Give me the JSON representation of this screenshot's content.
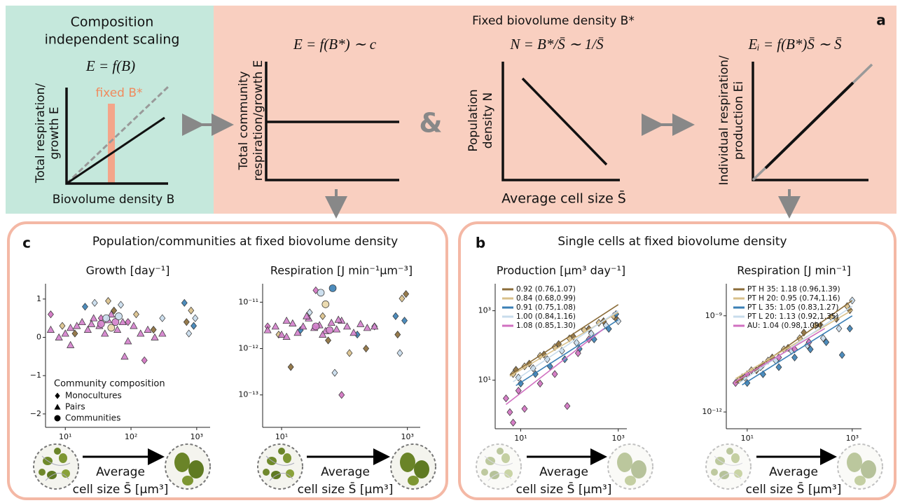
{
  "panel_a": {
    "label": "a",
    "title": "Fixed biovolume density B*",
    "independent": {
      "title_lines": [
        "Composition",
        "independent scaling"
      ],
      "formula": "E = f(B)",
      "y_label_lines": [
        "Total respiration/",
        "growth E"
      ],
      "x_label": "Biovolume density B",
      "annotation": "fixed B*"
    },
    "community": {
      "formula": "E = f(B*) ∼ c",
      "y_label_lines": [
        "Total community",
        "respiration/growth E"
      ]
    },
    "joiner": "&",
    "population": {
      "formula": "N = B*/S̄ ∼ 1/S̄",
      "y_label_lines": [
        "Population",
        "density N"
      ],
      "x_label": "Average cell size S̄"
    },
    "individual": {
      "formula": "Eᵢ = f(B*)S̄ ∼ S̄",
      "y_label_lines": [
        "Individual respiration/",
        "production Ei"
      ]
    }
  },
  "panel_c": {
    "label": "c",
    "title": "Population/communities at fixed biovolume density"
  },
  "panel_b": {
    "label": "b",
    "title": "Single cells at fixed biovolume density"
  },
  "arrow_label": [
    "Average",
    "cell size S̄ [μm³]"
  ],
  "chart_data": [
    {
      "type": "scatter",
      "title": "Growth [day⁻¹]",
      "xscale": "log",
      "yscale": "linear",
      "xlim": [
        5,
        1600
      ],
      "ylim": [
        -2.35,
        1.4
      ],
      "xticks": [
        {
          "value": 10,
          "label": "10¹"
        },
        {
          "value": 100,
          "label": "10²"
        },
        {
          "value": 1000,
          "label": "10³"
        }
      ],
      "yticks": [
        {
          "value": -2,
          "label": "−2"
        },
        {
          "value": -1,
          "label": "−1"
        },
        0,
        1
      ],
      "legend_title": "Community composition",
      "series": [
        {
          "name": "Monocultures",
          "marker": "diamond",
          "colors": [
            "#d070c0",
            "#d9c08a",
            "#8b6d3a",
            "#3a7fb5",
            "#c8dcec",
            "#d070c0",
            "#d9c08a",
            "#8b6d3a",
            "#c8dcec",
            "#d070c0",
            "#d9c08a",
            "#d070c0",
            "#8b6d3a",
            "#c8dcec",
            "#3a7fb5",
            "#8b6d3a",
            "#c8dcec",
            "#d9c08a",
            "#3a7fb5",
            "#c8dcec"
          ],
          "x": [
            6,
            9,
            14,
            20,
            28,
            35,
            45,
            55,
            70,
            90,
            120,
            160,
            220,
            300,
            650,
            700,
            760,
            820,
            900,
            950
          ],
          "values": [
            0.6,
            0.3,
            0.1,
            0.8,
            0.9,
            0.5,
            0.95,
            0.7,
            0.85,
            0.4,
            0.6,
            -0.6,
            0.2,
            0.5,
            0.9,
            0.4,
            0.1,
            0.7,
            0.3,
            0.5
          ]
        },
        {
          "name": "Pairs",
          "marker": "triangle",
          "color": "#d37fcb",
          "x": [
            6,
            8,
            10,
            12,
            15,
            18,
            22,
            27,
            33,
            40,
            50,
            62,
            75,
            90,
            110,
            140,
            180,
            230,
            300,
            12,
            25,
            45,
            80
          ],
          "values": [
            0.2,
            0.0,
            0.1,
            -0.2,
            0.3,
            0.4,
            0.2,
            0.5,
            0.3,
            0.1,
            0.6,
            0.2,
            0.4,
            -0.1,
            0.3,
            0.1,
            0.2,
            0.0,
            0.1,
            0.25,
            0.35,
            0.45,
            -0.5
          ]
        },
        {
          "name": "Communities",
          "marker": "circle",
          "colors": [
            "#d37fcb",
            "#c8dcec",
            "#e9d7a8",
            "#d37fcb",
            "#c8dcec"
          ],
          "x": [
            35,
            42,
            50,
            58,
            65
          ],
          "values": [
            0.35,
            0.5,
            0.25,
            0.4,
            0.55
          ]
        }
      ]
    },
    {
      "type": "scatter",
      "title": "Respiration [J min⁻¹μm⁻³]",
      "xscale": "log",
      "yscale": "log",
      "xlim": [
        5,
        1600
      ],
      "ylim": [
        2e-14,
        2.5e-11
      ],
      "xticks": [
        {
          "value": 10,
          "label": "10¹"
        },
        {
          "value": 1000,
          "label": "10³"
        }
      ],
      "yticks": [
        {
          "value": 1e-13,
          "label": "10⁻¹³"
        },
        {
          "value": 1e-12,
          "label": "10⁻¹²"
        },
        {
          "value": 1e-11,
          "label": "10⁻¹¹"
        }
      ],
      "series": [
        {
          "marker": "diamond",
          "colors": [
            "#d070c0",
            "#d9c08a",
            "#8b6d3a",
            "#3a7fb5",
            "#c8dcec",
            "#d070c0",
            "#d9c08a",
            "#8b6d3a",
            "#c8dcec",
            "#d070c0",
            "#d9c08a",
            "#3a7fb5",
            "#8b6d3a",
            "#c8dcec",
            "#3a7fb5",
            "#8b6d3a",
            "#c8dcec",
            "#d9c08a",
            "#3a7fb5",
            "#8b6d3a"
          ],
          "x": [
            6,
            9,
            14,
            20,
            28,
            35,
            45,
            55,
            70,
            90,
            120,
            160,
            220,
            300,
            650,
            700,
            760,
            820,
            900,
            950
          ],
          "values": [
            3e-12,
            2e-12,
            4e-13,
            2.5e-12,
            6e-12,
            1.8e-11,
            5e-12,
            1.5e-12,
            3e-13,
            1e-13,
            8e-13,
            2e-12,
            1e-12,
            3e-12,
            5e-12,
            2e-12,
            8e-13,
            1.2e-11,
            4e-12,
            1.5e-11
          ]
        },
        {
          "marker": "triangle",
          "color": "#d37fcb",
          "x": [
            6,
            8,
            10,
            12,
            15,
            18,
            22,
            27,
            33,
            40,
            50,
            62,
            75,
            90,
            110,
            140,
            180,
            230,
            300,
            12,
            25,
            45,
            80
          ],
          "values": [
            2.5e-12,
            3e-12,
            2e-12,
            4e-12,
            3.5e-12,
            2.2e-12,
            3e-12,
            4.5e-12,
            2.8e-12,
            3.2e-12,
            2.4e-12,
            3.6e-12,
            2.6e-12,
            4e-12,
            3e-12,
            2.2e-12,
            3.4e-12,
            2.8e-12,
            3e-12,
            1.8e-12,
            5e-12,
            2e-12,
            4.2e-12
          ]
        },
        {
          "marker": "circle",
          "colors": [
            "#d37fcb",
            "#c8dcec",
            "#e9d7a8",
            "#d37fcb",
            "#3a7fb5"
          ],
          "x": [
            35,
            42,
            50,
            58,
            65
          ],
          "values": [
            3e-12,
            1.6e-11,
            9e-12,
            2.5e-12,
            2e-11
          ]
        }
      ]
    },
    {
      "type": "scatter",
      "title": "Production [μm³ day⁻¹]",
      "xscale": "log",
      "yscale": "log",
      "xlim": [
        3,
        1500
      ],
      "ylim": [
        0.4,
        6000
      ],
      "xticks": [
        {
          "value": 10,
          "label": "10¹"
        },
        {
          "value": 1000,
          "label": "10³"
        }
      ],
      "yticks": [
        {
          "value": 10,
          "label": "10¹"
        },
        {
          "value": 1000,
          "label": "10³"
        }
      ],
      "series": [
        {
          "name": "0.92 (0.76,1.07)",
          "marker": "diamond",
          "color": "#8b6d3a",
          "x": [
            8,
            15,
            30,
            60,
            120,
            250,
            500,
            900
          ],
          "values": [
            20,
            30,
            55,
            110,
            180,
            300,
            500,
            600
          ],
          "fit": {
            "x": [
              6,
              1000
            ],
            "values": [
              14,
              1500
            ]
          }
        },
        {
          "name": "0.84 (0.68,0.99)",
          "marker": "diamond",
          "color": "#d9c08a",
          "x": [
            7,
            12,
            25,
            50,
            100,
            200,
            400,
            800
          ],
          "values": [
            15,
            25,
            50,
            90,
            160,
            280,
            450,
            700
          ],
          "fit": {
            "x": [
              6,
              1000
            ],
            "values": [
              13,
              900
            ]
          }
        },
        {
          "name": "0.91 (0.75,1.08)",
          "marker": "diamond",
          "color": "#3a7fb5",
          "x": [
            10,
            20,
            40,
            80,
            160,
            320,
            640,
            900
          ],
          "values": [
            8,
            15,
            25,
            40,
            80,
            150,
            300,
            800
          ],
          "fit": {
            "x": [
              8,
              1000
            ],
            "values": [
              7,
              550
            ]
          }
        },
        {
          "name": "1.00 (0.84,1.16)",
          "marker": "diamond",
          "color": "#c8dcec",
          "x": [
            9,
            18,
            35,
            70,
            140,
            280,
            560,
            1000
          ],
          "values": [
            12,
            22,
            40,
            70,
            120,
            220,
            380,
            500
          ],
          "fit": {
            "x": [
              7,
              1000
            ],
            "values": [
              9,
              1000
            ]
          }
        },
        {
          "name": "1.08 (0.85,1.30)",
          "marker": "diamond",
          "color": "#d070c0",
          "x": [
            5,
            6,
            7,
            9,
            12,
            25,
            50,
            90,
            150,
            250
          ],
          "values": [
            3,
            1.2,
            0.6,
            5,
            1.5,
            8,
            15,
            1.8,
            60,
            150
          ],
          "fit": {
            "x": [
              5,
              500
            ],
            "values": [
              2,
              300
            ]
          }
        }
      ]
    },
    {
      "type": "scatter",
      "title": "Respiration [J min⁻¹]",
      "xscale": "log",
      "yscale": "log",
      "xlim": [
        4,
        1500
      ],
      "ylim": [
        3e-13,
        1e-08
      ],
      "xticks": [
        {
          "value": 10,
          "label": "10¹"
        },
        {
          "value": 1000,
          "label": "10³"
        }
      ],
      "yticks": [
        {
          "value": 1e-12,
          "label": "10⁻¹²"
        },
        {
          "value": 1e-09,
          "label": "10⁻⁹"
        }
      ],
      "series": [
        {
          "name": "PT H 35: 1.18 (0.96,1.39)",
          "marker": "diamond",
          "color": "#8b6d3a",
          "x": [
            8,
            15,
            30,
            60,
            120,
            250,
            500,
            900
          ],
          "values": [
            1.2e-11,
            2e-11,
            5e-11,
            1e-10,
            3e-10,
            5e-10,
            8e-10,
            1.5e-09
          ],
          "fit": {
            "x": [
              6,
              1000
            ],
            "values": [
              8e-12,
              3e-09
            ]
          }
        },
        {
          "name": "PT H 20: 0.95 (0.74,1.16)",
          "marker": "diamond",
          "color": "#d9c08a",
          "x": [
            7,
            12,
            25,
            50,
            100,
            200,
            400,
            800
          ],
          "values": [
            1e-11,
            2e-11,
            4e-11,
            9e-11,
            2e-10,
            5e-10,
            9e-10,
            2e-09
          ],
          "fit": {
            "x": [
              6,
              1000
            ],
            "values": [
              1.1e-11,
              1.5e-09
            ]
          }
        },
        {
          "name": "PT L 35: 1.05 (0.83,1.27)",
          "marker": "diamond",
          "color": "#3a7fb5",
          "x": [
            10,
            20,
            40,
            80,
            160,
            320,
            640,
            900
          ],
          "values": [
            8e-12,
            1.5e-11,
            2.5e-11,
            5e-11,
            9e-11,
            1.5e-10,
            6e-11,
            4e-10
          ],
          "fit": {
            "x": [
              8,
              1000
            ],
            "values": [
              7e-12,
              1e-09
            ]
          }
        },
        {
          "name": "PT L 20: 1.13 (0.92,1.35)",
          "marker": "diamond",
          "color": "#c8dcec",
          "x": [
            9,
            18,
            35,
            70,
            140,
            280,
            560,
            1000
          ],
          "values": [
            1.2e-11,
            2.5e-11,
            4e-11,
            8e-11,
            1.2e-10,
            2e-10,
            4e-10,
            3e-09
          ],
          "fit": {
            "x": [
              7,
              1000
            ],
            "values": [
              8e-12,
              2e-09
            ]
          }
        },
        {
          "name": "AU: 1.04 (0.98,1.09)",
          "marker": "diamond",
          "color": "#d070c0",
          "x": [
            6,
            10,
            20,
            40,
            80,
            150
          ],
          "values": [
            8e-12,
            1.5e-11,
            3e-11,
            5e-11,
            9e-11,
            1.5e-10
          ],
          "fit": {
            "x": [
              6,
              300
            ],
            "values": [
              9e-12,
              4e-10
            ]
          }
        }
      ]
    }
  ]
}
